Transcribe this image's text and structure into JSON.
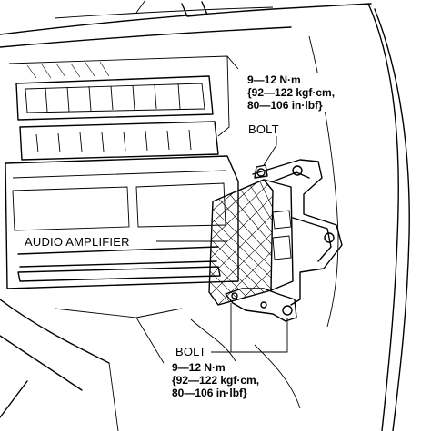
{
  "labels": {
    "torque_top": {
      "line1": "9—12 N·m",
      "line2": "{92—122 kgf·cm,",
      "line3": "80—106 in·lbf}"
    },
    "bolt_top": "BOLT",
    "audio_amplifier": "AUDIO AMPLIFIER",
    "bolt_bottom": "BOLT",
    "torque_bottom": {
      "line1": "9—12 N·m",
      "line2": "{92—122 kgf·cm,",
      "line3": "80—106 in·lbf}"
    }
  }
}
